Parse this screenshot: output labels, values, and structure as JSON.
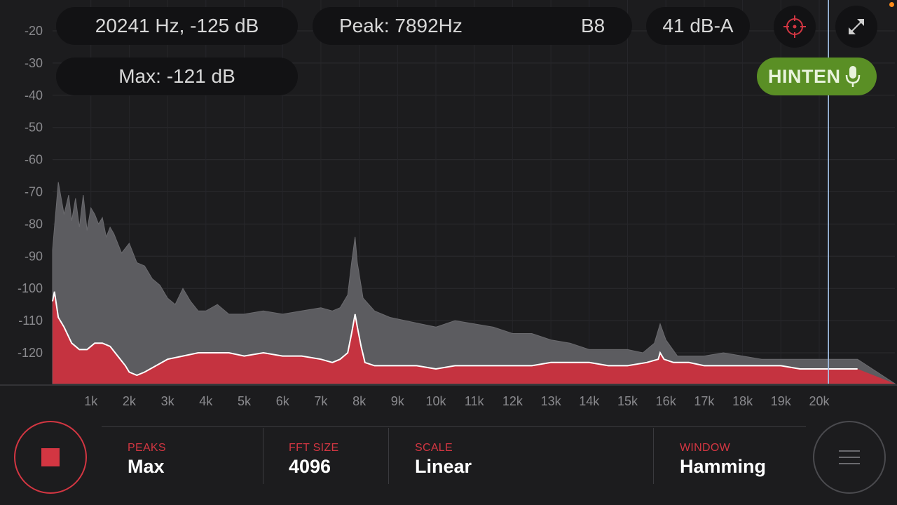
{
  "readouts": {
    "cursor": "20241 Hz, -125 dB",
    "peak": "Peak: 7892Hz",
    "note": "B8",
    "level": "41 dB-A",
    "max": "Max: -121 dB"
  },
  "input_badge": {
    "label": "HINTEN",
    "icon": "microphone-icon"
  },
  "icons": {
    "target": "crosshair-icon",
    "resize": "collapse-icon",
    "stop": "stop-icon",
    "menu": "hamburger-menu-icon"
  },
  "colors": {
    "accent_red": "#d33642",
    "live_green": "#5a8f25",
    "max_curve": "#5a5a5e",
    "status_dot": "#ff8c1a",
    "cursor_line": "#a9c8ef"
  },
  "settings": [
    {
      "label": "PEAKS",
      "value": "Max"
    },
    {
      "label": "FFT SIZE",
      "value": "4096"
    },
    {
      "label": "SCALE",
      "value": "Linear"
    },
    {
      "label": "WINDOW",
      "value": "Hamming"
    }
  ],
  "chart_data": {
    "type": "area",
    "y_ticks": [
      "-20",
      "-30",
      "-40",
      "-50",
      "-60",
      "-70",
      "-80",
      "-90",
      "-100",
      "-110",
      "-120"
    ],
    "x_ticks": [
      "1k",
      "2k",
      "3k",
      "4k",
      "5k",
      "6k",
      "7k",
      "8k",
      "9k",
      "10k",
      "11k",
      "12k",
      "13k",
      "14k",
      "15k",
      "16k",
      "17k",
      "18k",
      "19k",
      "20k"
    ],
    "cursor_hz": 20241,
    "series": [
      {
        "kind": "max-hold",
        "x": [
          0,
          150,
          300,
          420,
          500,
          600,
          700,
          800,
          900,
          1000,
          1100,
          1200,
          1300,
          1400,
          1500,
          1600,
          1800,
          2000,
          2200,
          2400,
          2600,
          2800,
          3000,
          3200,
          3400,
          3600,
          3800,
          4000,
          4300,
          4600,
          5000,
          5500,
          6000,
          6500,
          7000,
          7300,
          7500,
          7700,
          7800,
          7892,
          7950,
          8100,
          8400,
          8800,
          9200,
          9600,
          10000,
          10500,
          11000,
          11500,
          12000,
          12500,
          13000,
          13500,
          14000,
          14500,
          15000,
          15400,
          15700,
          15850,
          16000,
          16300,
          16600,
          17000,
          17500,
          18000,
          18500,
          19000,
          19500,
          20000,
          20500,
          21000
        ],
        "y": [
          -88,
          -67,
          -77,
          -71,
          -79,
          -72,
          -81,
          -71,
          -82,
          -75,
          -77,
          -80,
          -78,
          -84,
          -81,
          -83,
          -89,
          -86,
          -92,
          -93,
          -97,
          -99,
          -103,
          -105,
          -100,
          -104,
          -107,
          -107,
          -105,
          -108,
          -108,
          -107,
          -108,
          -107,
          -106,
          -107,
          -106,
          -102,
          -92,
          -84,
          -92,
          -103,
          -107,
          -109,
          -110,
          -111,
          -112,
          -110,
          -111,
          -112,
          -114,
          -114,
          -116,
          -117,
          -119,
          -119,
          -119,
          -120,
          -117,
          -111,
          -116,
          -121,
          -121,
          -121,
          -120,
          -121,
          -122,
          -122,
          -122,
          -122,
          -122,
          -122
        ]
      },
      {
        "kind": "live",
        "x": [
          0,
          50,
          150,
          300,
          500,
          700,
          900,
          1000,
          1100,
          1300,
          1500,
          1700,
          1900,
          2000,
          2200,
          2400,
          2700,
          3000,
          3400,
          3800,
          4200,
          4600,
          5000,
          5500,
          6000,
          6500,
          7000,
          7300,
          7500,
          7700,
          7800,
          7892,
          7950,
          8050,
          8150,
          8400,
          8800,
          9500,
          10000,
          10500,
          11000,
          11500,
          12000,
          12500,
          13000,
          13500,
          14000,
          14500,
          15000,
          15500,
          15800,
          15850,
          15950,
          16200,
          16600,
          17000,
          17500,
          18000,
          18500,
          19000,
          19500,
          20000,
          20500,
          21000
        ],
        "y": [
          -104,
          -101,
          -109,
          -112,
          -117,
          -119,
          -119,
          -118,
          -117,
          -117,
          -118,
          -121,
          -124,
          -126,
          -127,
          -126,
          -124,
          -122,
          -121,
          -120,
          -120,
          -120,
          -121,
          -120,
          -121,
          -121,
          -122,
          -123,
          -122,
          -120,
          -114,
          -108,
          -112,
          -118,
          -123,
          -124,
          -124,
          -124,
          -125,
          -124,
          -124,
          -124,
          -124,
          -124,
          -123,
          -123,
          -123,
          -124,
          -124,
          -123,
          -122,
          -120,
          -122,
          -123,
          -123,
          -124,
          -124,
          -124,
          -124,
          -124,
          -125,
          -125,
          -125,
          -125
        ]
      }
    ]
  }
}
